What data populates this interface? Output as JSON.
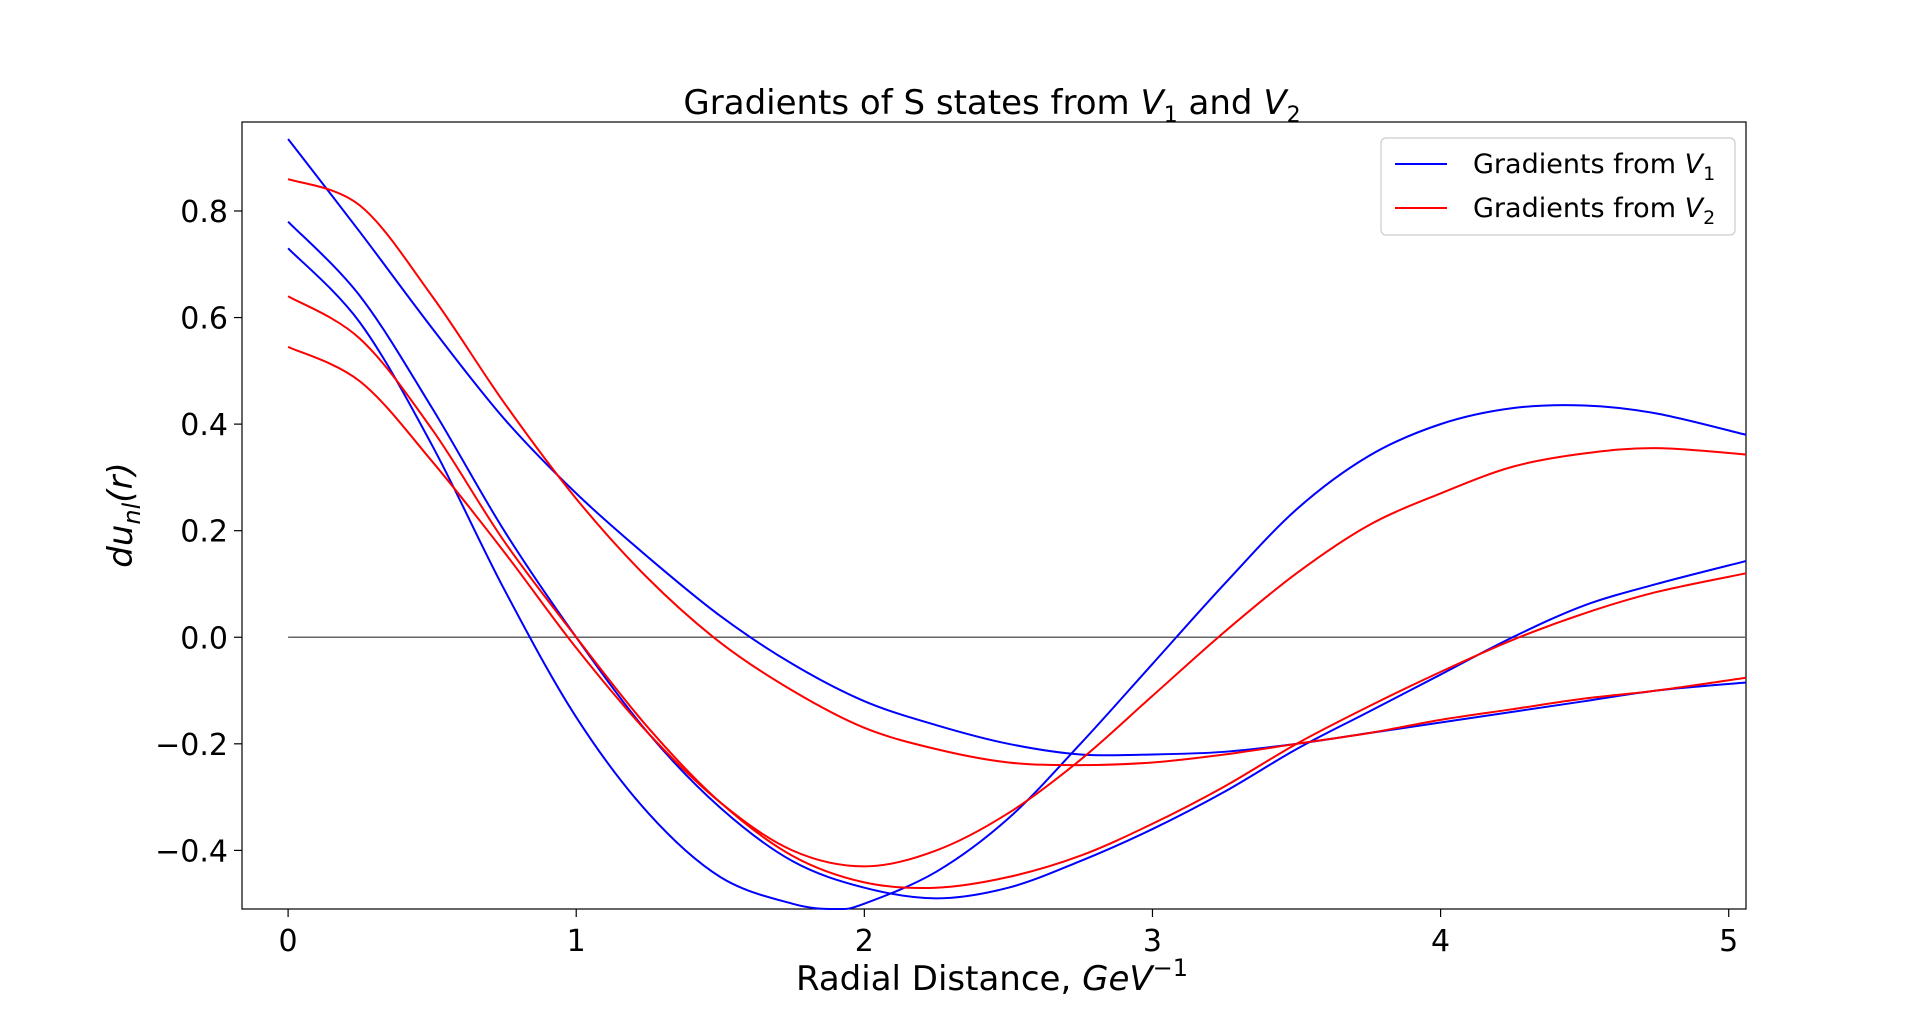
{
  "chart_data": {
    "type": "line",
    "title": {
      "prefix": "Gradients of S states from ",
      "v1": "V",
      "v1_sub": "1",
      "mid": " and ",
      "v2": "V",
      "v2_sub": "2"
    },
    "xlabel": {
      "text": "Radial Distance, ",
      "unit": "GeV",
      "unit_sup": "−1"
    },
    "ylabel": {
      "prefix": "du",
      "sub": "nl",
      "suffix": "(r)"
    },
    "xlim": [
      -0.16,
      5.06
    ],
    "ylim": [
      -0.51,
      0.967
    ],
    "xticks": [
      0,
      1,
      2,
      3,
      4,
      5
    ],
    "xtick_labels": [
      "0",
      "1",
      "2",
      "3",
      "4",
      "5"
    ],
    "yticks": [
      -0.4,
      -0.2,
      0.0,
      0.2,
      0.4,
      0.6,
      0.8
    ],
    "ytick_labels": [
      "−0.4",
      "−0.2",
      "0.0",
      "0.2",
      "0.4",
      "0.6",
      "0.8"
    ],
    "grid": false,
    "legend_position": "top-right",
    "legend": [
      {
        "label_prefix": "Gradients from ",
        "label_v": "V",
        "label_sub": "1",
        "color": "#0000ff"
      },
      {
        "label_prefix": "Gradients from ",
        "label_v": "V",
        "label_sub": "2",
        "color": "#ff0000"
      }
    ],
    "zero_line": {
      "y": 0,
      "x_range": [
        0,
        5.06
      ],
      "color": "#666666"
    },
    "series": [
      {
        "group": "V1",
        "color": "#0000ff",
        "x": [
          0,
          0.25,
          0.5,
          0.75,
          1.0,
          1.25,
          1.5,
          1.75,
          2.0,
          2.25,
          2.5,
          2.75,
          3.0,
          3.25,
          3.5,
          3.75,
          4.0,
          4.25,
          4.5,
          4.75,
          5.06
        ],
        "y": [
          0.935,
          0.76,
          0.58,
          0.41,
          0.27,
          0.15,
          0.04,
          -0.05,
          -0.12,
          -0.165,
          -0.2,
          -0.22,
          -0.22,
          -0.215,
          -0.2,
          -0.18,
          -0.16,
          -0.14,
          -0.12,
          -0.1,
          -0.085
        ]
      },
      {
        "group": "V1",
        "color": "#0000ff",
        "x": [
          0,
          0.25,
          0.5,
          0.75,
          1.0,
          1.25,
          1.5,
          1.75,
          2.0,
          2.25,
          2.5,
          2.75,
          3.0,
          3.25,
          3.5,
          3.75,
          4.0,
          4.25,
          4.5,
          4.75,
          5.06
        ],
        "y": [
          0.78,
          0.64,
          0.43,
          0.2,
          0.0,
          -0.18,
          -0.32,
          -0.42,
          -0.47,
          -0.49,
          -0.47,
          -0.42,
          -0.36,
          -0.29,
          -0.21,
          -0.14,
          -0.07,
          0.0,
          0.06,
          0.1,
          0.143
        ]
      },
      {
        "group": "V1",
        "color": "#0000ff",
        "x": [
          0,
          0.25,
          0.5,
          0.75,
          1.0,
          1.25,
          1.5,
          1.75,
          1.9,
          2.0,
          2.25,
          2.5,
          2.75,
          3.0,
          3.25,
          3.5,
          3.75,
          4.0,
          4.25,
          4.5,
          4.75,
          5.06
        ],
        "y": [
          0.73,
          0.59,
          0.36,
          0.09,
          -0.15,
          -0.33,
          -0.45,
          -0.5,
          -0.51,
          -0.5,
          -0.44,
          -0.34,
          -0.2,
          -0.05,
          0.1,
          0.24,
          0.34,
          0.4,
          0.43,
          0.435,
          0.42,
          0.38
        ]
      },
      {
        "group": "V2",
        "color": "#ff0000",
        "x": [
          0,
          0.25,
          0.5,
          0.75,
          1.0,
          1.25,
          1.5,
          1.75,
          2.0,
          2.25,
          2.5,
          2.75,
          3.0,
          3.25,
          3.5,
          3.75,
          4.0,
          4.25,
          4.5,
          4.75,
          5.06
        ],
        "y": [
          0.86,
          0.81,
          0.64,
          0.44,
          0.26,
          0.11,
          -0.01,
          -0.1,
          -0.17,
          -0.21,
          -0.235,
          -0.24,
          -0.235,
          -0.22,
          -0.2,
          -0.18,
          -0.155,
          -0.135,
          -0.115,
          -0.1,
          -0.076
        ]
      },
      {
        "group": "V2",
        "color": "#ff0000",
        "x": [
          0,
          0.25,
          0.5,
          0.75,
          1.0,
          1.25,
          1.5,
          1.75,
          2.0,
          2.25,
          2.5,
          2.75,
          3.0,
          3.25,
          3.5,
          3.75,
          4.0,
          4.25,
          4.5,
          4.75,
          5.06
        ],
        "y": [
          0.64,
          0.56,
          0.39,
          0.18,
          0.0,
          -0.17,
          -0.31,
          -0.41,
          -0.46,
          -0.47,
          -0.45,
          -0.41,
          -0.35,
          -0.28,
          -0.2,
          -0.13,
          -0.065,
          -0.005,
          0.045,
          0.085,
          0.12
        ]
      },
      {
        "group": "V2",
        "color": "#ff0000",
        "x": [
          0,
          0.25,
          0.5,
          0.75,
          1.0,
          1.25,
          1.5,
          1.75,
          2.0,
          2.25,
          2.5,
          2.75,
          3.0,
          3.25,
          3.5,
          3.75,
          4.0,
          4.25,
          4.5,
          4.75,
          5.06
        ],
        "y": [
          0.545,
          0.48,
          0.33,
          0.16,
          -0.02,
          -0.18,
          -0.31,
          -0.4,
          -0.43,
          -0.4,
          -0.33,
          -0.23,
          -0.11,
          0.01,
          0.12,
          0.21,
          0.27,
          0.32,
          0.345,
          0.355,
          0.343
        ]
      }
    ]
  }
}
